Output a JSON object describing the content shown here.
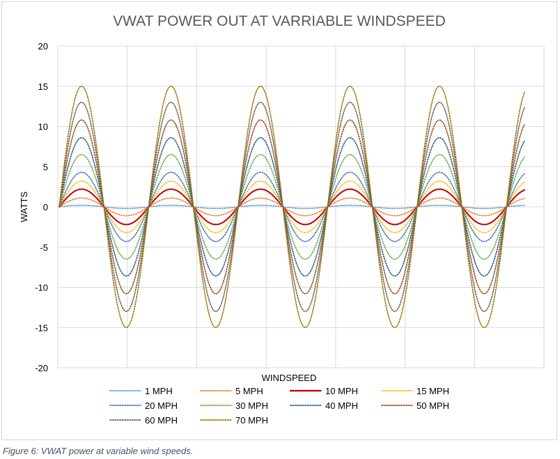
{
  "chart_data": {
    "type": "line",
    "title": "VWAT POWER OUT AT VARRIABLE WINDSPEED",
    "xlabel": "WINDSPEED",
    "ylabel": "WATTS",
    "ylim": [
      -20,
      20
    ],
    "yticks": [
      20,
      15,
      10,
      5,
      0,
      -5,
      -10,
      -15,
      -20
    ],
    "grid": true,
    "line_style": "dotted",
    "legend_position": "bottom",
    "cycles": 5.2,
    "series": [
      {
        "name": "1 MPH",
        "amplitude": 0.2,
        "color": "#5b9bd5"
      },
      {
        "name": "5 MPH",
        "amplitude": 1.1,
        "color": "#ed7d31"
      },
      {
        "name": "10 MPH",
        "amplitude": 2.2,
        "color": "#c00000"
      },
      {
        "name": "15 MPH",
        "amplitude": 3.2,
        "color": "#ffc000"
      },
      {
        "name": "20 MPH",
        "amplitude": 4.3,
        "color": "#4472c4"
      },
      {
        "name": "30 MPH",
        "amplitude": 6.5,
        "color": "#70ad47"
      },
      {
        "name": "40 MPH",
        "amplitude": 8.6,
        "color": "#255e91"
      },
      {
        "name": "50 MPH",
        "amplitude": 10.8,
        "color": "#9e480e"
      },
      {
        "name": "60 MPH",
        "amplitude": 13.0,
        "color": "#636363"
      },
      {
        "name": "70 MPH",
        "amplitude": 15.0,
        "color": "#997300"
      }
    ]
  },
  "caption": "Figure 6: VWAT power at variable wind speeds."
}
